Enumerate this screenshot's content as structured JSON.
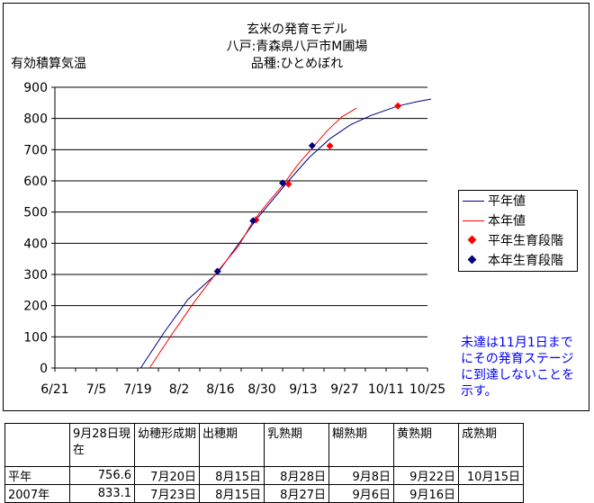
{
  "chart_data": {
    "type": "line",
    "title_lines": [
      "玄米の発育モデル",
      "八戸:青森県八戸市M圃場",
      "品種:ひとめぼれ"
    ],
    "ylabel": "有効積算気温",
    "ylim": [
      0,
      900
    ],
    "yticks": [
      0,
      100,
      200,
      300,
      400,
      500,
      600,
      700,
      800,
      900
    ],
    "xlim": [
      "6/21",
      "10/25"
    ],
    "xticks": [
      "6/21",
      "7/5",
      "7/19",
      "8/2",
      "8/16",
      "8/30",
      "9/13",
      "9/27",
      "10/11",
      "10/25"
    ],
    "grid": "horizontal",
    "legend_position": "right",
    "series": [
      {
        "name": "平年値",
        "kind": "line",
        "color": "#000080",
        "x": [
          "7/20",
          "7/28",
          "8/5",
          "8/15",
          "8/28",
          "9/8",
          "9/15",
          "9/22",
          "9/29",
          "10/6",
          "10/15",
          "10/22",
          "10/27"
        ],
        "y": [
          0,
          115,
          220,
          305,
          475,
          600,
          675,
          735,
          780,
          810,
          840,
          855,
          862
        ]
      },
      {
        "name": "本年値",
        "kind": "line",
        "color": "#ff0000",
        "x": [
          "7/23",
          "7/30",
          "8/7",
          "8/15",
          "8/22",
          "8/27",
          "9/1",
          "9/6",
          "9/11",
          "9/16",
          "9/21",
          "9/26",
          "10/1"
        ],
        "y": [
          0,
          100,
          210,
          310,
          390,
          470,
          530,
          585,
          650,
          705,
          760,
          805,
          833
        ]
      },
      {
        "name": "平年生育段階",
        "kind": "points",
        "color": "#ff0000",
        "x": [
          "8/15",
          "8/28",
          "9/8",
          "9/22",
          "10/15"
        ],
        "y": [
          310,
          475,
          590,
          712,
          840
        ]
      },
      {
        "name": "本年生育段階",
        "kind": "points",
        "color": "#000080",
        "x": [
          "8/15",
          "8/27",
          "9/6",
          "9/16"
        ],
        "y": [
          310,
          472,
          593,
          713
        ]
      }
    ]
  },
  "note": "未達は11月1日までにその発育ステージに到達しないことを示す。",
  "table": {
    "headers": [
      "",
      "9月28日現在",
      "幼穂形成期",
      "出穂期",
      "乳熟期",
      "糊熟期",
      "黄熟期",
      "成熟期"
    ],
    "rows": [
      [
        "平年",
        "756.6",
        "7月20日",
        "8月15日",
        "8月28日",
        "9月8日",
        "9月22日",
        "10月15日"
      ],
      [
        "2007年",
        "833.1",
        "7月23日",
        "8月15日",
        "8月27日",
        "9月6日",
        "9月16日",
        ""
      ]
    ]
  }
}
